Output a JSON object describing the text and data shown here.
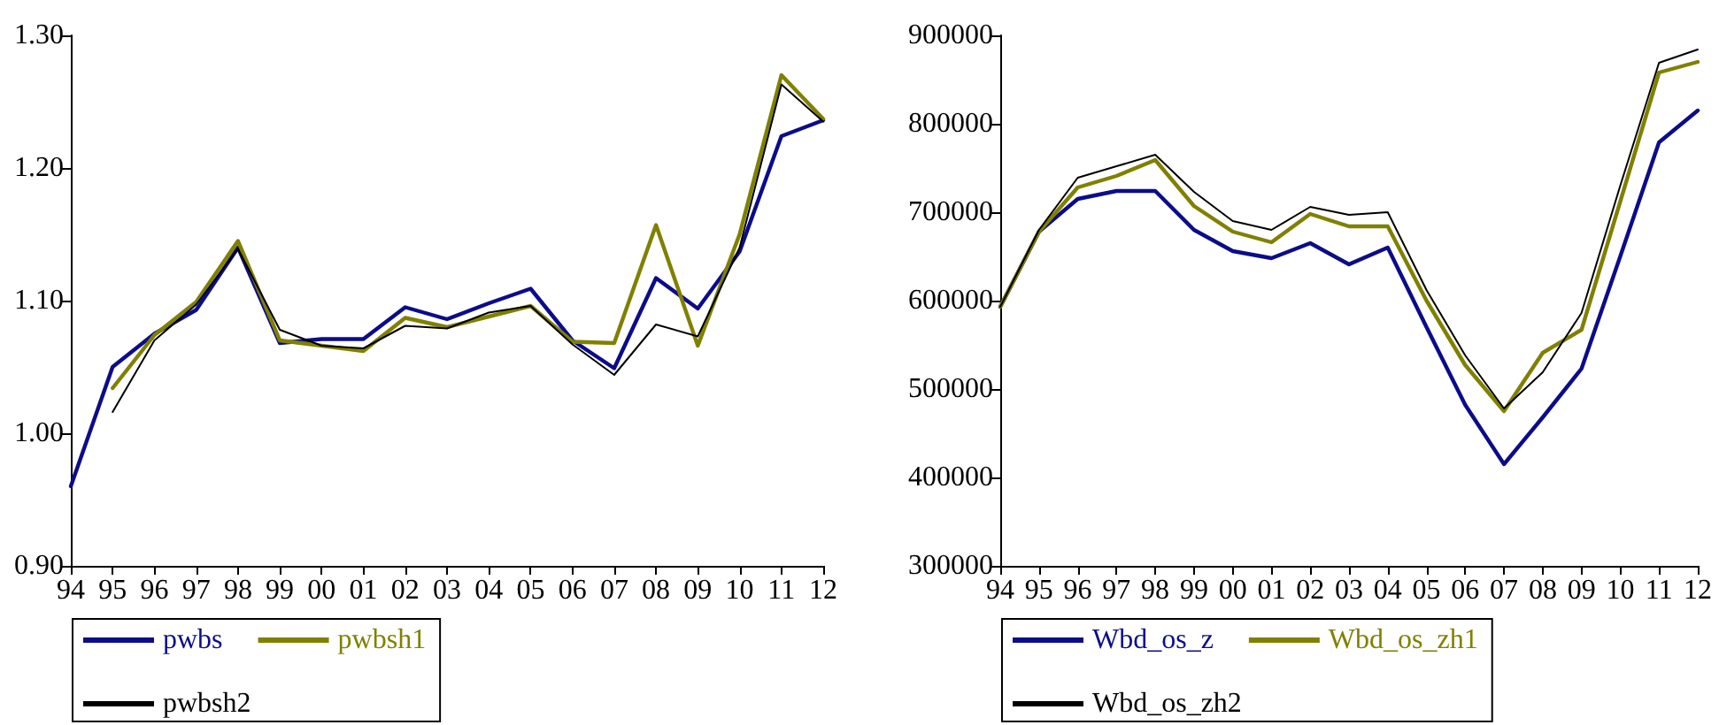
{
  "chart_data": [
    {
      "type": "line",
      "categories": [
        "94",
        "95",
        "96",
        "97",
        "98",
        "99",
        "00",
        "01",
        "02",
        "03",
        "04",
        "05",
        "06",
        "07",
        "08",
        "09",
        "10",
        "11",
        "12"
      ],
      "series": [
        {
          "name": "pwbs",
          "color": "#0c0c8a",
          "values": [
            0.96,
            1.05,
            1.075,
            1.093,
            1.14,
            1.068,
            1.071,
            1.071,
            1.095,
            1.086,
            1.098,
            1.109,
            1.07,
            1.049,
            1.117,
            1.094,
            1.137,
            1.224,
            1.236
          ]
        },
        {
          "name": "pwbsh1",
          "color": "#808000",
          "values": [
            null,
            1.034,
            1.074,
            1.099,
            1.145,
            1.07,
            1.066,
            1.062,
            1.087,
            1.08,
            1.088,
            1.096,
            1.069,
            1.068,
            1.157,
            1.066,
            1.15,
            1.27,
            1.237
          ]
        },
        {
          "name": "pwbsh2",
          "color": "#000000",
          "values": [
            null,
            1.016,
            1.07,
            1.097,
            1.139,
            1.078,
            1.066,
            1.064,
            1.081,
            1.079,
            1.091,
            1.096,
            1.067,
            1.044,
            1.082,
            1.073,
            1.14,
            1.263,
            1.235
          ]
        }
      ],
      "ylim": [
        0.9,
        1.3
      ],
      "yticks": [
        {
          "value": 0.9,
          "label": "0.90"
        },
        {
          "value": 1.0,
          "label": "1.00"
        },
        {
          "value": 1.1,
          "label": "1.10"
        },
        {
          "value": 1.2,
          "label": "1.20"
        },
        {
          "value": 1.3,
          "label": "1.30"
        }
      ],
      "legend": "bottom",
      "marker": "none"
    },
    {
      "type": "line",
      "categories": [
        "94",
        "95",
        "96",
        "97",
        "98",
        "99",
        "00",
        "01",
        "02",
        "03",
        "04",
        "05",
        "06",
        "07",
        "08",
        "09",
        "10",
        "11",
        "12"
      ],
      "series": [
        {
          "name": "Wbd_os_z",
          "color": "#0c0c8a",
          "values": [
            593000,
            678000,
            715000,
            724000,
            724000,
            680000,
            656000,
            648000,
            665000,
            641000,
            660000,
            570000,
            482000,
            415000,
            468000,
            523000,
            650000,
            779000,
            815000
          ]
        },
        {
          "name": "Wbd_os_zh1",
          "color": "#808000",
          "values": [
            593000,
            678000,
            728000,
            741000,
            759000,
            707000,
            678000,
            666000,
            698000,
            684000,
            684000,
            600000,
            527000,
            475000,
            541000,
            567000,
            712000,
            858000,
            870000
          ]
        },
        {
          "name": "Wbd_os_zh2",
          "color": "#000000",
          "values": [
            593000,
            680000,
            739000,
            752000,
            765000,
            723000,
            690000,
            680000,
            706000,
            697000,
            700000,
            612000,
            538000,
            478000,
            519000,
            586000,
            730000,
            869000,
            884000
          ]
        }
      ],
      "ylim": [
        300000,
        900000
      ],
      "yticks": [
        300000,
        400000,
        500000,
        600000,
        700000,
        800000,
        900000
      ],
      "legend": "bottom",
      "marker": "none"
    }
  ]
}
